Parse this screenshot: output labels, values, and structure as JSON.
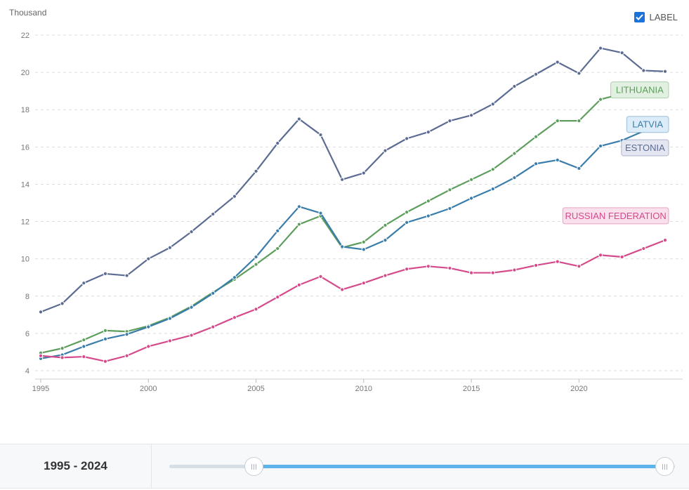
{
  "chart_data": {
    "type": "line",
    "unit_label": "Thousand",
    "x": [
      1995,
      1996,
      1997,
      1998,
      1999,
      2000,
      2001,
      2002,
      2003,
      2004,
      2005,
      2006,
      2007,
      2008,
      2009,
      2010,
      2011,
      2012,
      2013,
      2014,
      2015,
      2016,
      2017,
      2018,
      2019,
      2020,
      2021,
      2022,
      2023,
      2024
    ],
    "xlim": [
      1995,
      2024
    ],
    "ylim": [
      4,
      22
    ],
    "yticks": [
      4,
      6,
      8,
      10,
      12,
      14,
      16,
      18,
      20,
      22
    ],
    "xticks": [
      1995,
      2000,
      2005,
      2010,
      2015,
      2020
    ],
    "grid": true,
    "series": [
      {
        "name": "ESTONIA",
        "color": "#5b6b91",
        "label_bg": "#e4e7f2",
        "values": [
          7.15,
          7.6,
          8.7,
          9.2,
          9.1,
          10.0,
          10.6,
          11.45,
          12.4,
          13.35,
          14.7,
          16.2,
          17.5,
          16.65,
          14.25,
          14.6,
          15.8,
          16.45,
          16.8,
          17.4,
          17.7,
          18.3,
          19.25,
          19.9,
          20.55,
          19.95,
          21.3,
          21.05,
          20.1,
          20.05
        ]
      },
      {
        "name": "LITHUANIA",
        "color": "#5d9e5d",
        "label_bg": "#e2f0e2",
        "values": [
          4.95,
          5.2,
          5.65,
          6.15,
          6.1,
          6.4,
          6.85,
          7.45,
          8.2,
          8.9,
          9.7,
          10.55,
          11.85,
          12.3,
          10.6,
          10.9,
          11.8,
          12.5,
          13.1,
          13.7,
          14.25,
          14.8,
          15.65,
          16.55,
          17.4,
          17.4,
          18.55,
          18.85,
          18.85,
          19.15
        ]
      },
      {
        "name": "LATVIA",
        "color": "#3a7daa",
        "label_bg": "#dcecf9",
        "values": [
          4.65,
          4.85,
          5.3,
          5.7,
          5.95,
          6.35,
          6.8,
          7.4,
          8.15,
          9.0,
          10.1,
          11.5,
          12.8,
          12.45,
          10.65,
          10.5,
          11.0,
          11.95,
          12.3,
          12.7,
          13.25,
          13.75,
          14.35,
          15.1,
          15.3,
          14.85,
          16.05,
          16.35,
          16.85,
          16.9
        ]
      },
      {
        "name": "RUSSIAN FEDERATION",
        "color": "#d44a8a",
        "label_bg": "#fae0ec",
        "values": [
          4.8,
          4.7,
          4.75,
          4.5,
          4.8,
          5.3,
          5.6,
          5.9,
          6.35,
          6.85,
          7.3,
          7.95,
          8.6,
          9.05,
          8.35,
          8.7,
          9.1,
          9.45,
          9.6,
          9.5,
          9.25,
          9.25,
          9.4,
          9.65,
          9.85,
          9.6,
          10.2,
          10.1,
          10.55,
          11.0
        ]
      }
    ]
  },
  "controls": {
    "label_toggle": "LABEL",
    "label_checked": true,
    "range_text": "1995 - 2024",
    "range_start": 1995,
    "range_end": 2024
  }
}
